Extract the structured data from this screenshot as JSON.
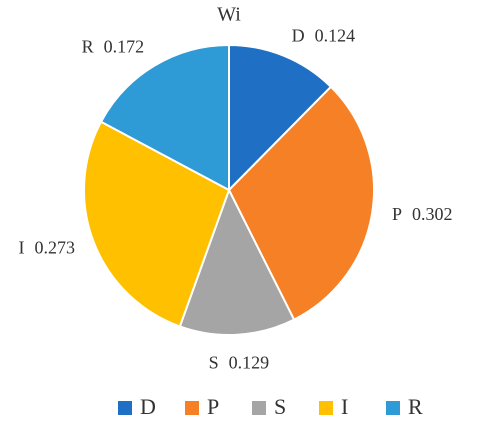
{
  "chart_data": {
    "type": "pie",
    "title": "Wi",
    "categories": [
      "D",
      "P",
      "S",
      "I",
      "R"
    ],
    "values": [
      0.124,
      0.302,
      0.129,
      0.273,
      0.172
    ],
    "colors": [
      "#1f6fc5",
      "#f58025",
      "#a5a5a5",
      "#ffc000",
      "#2e9ad6"
    ]
  }
}
